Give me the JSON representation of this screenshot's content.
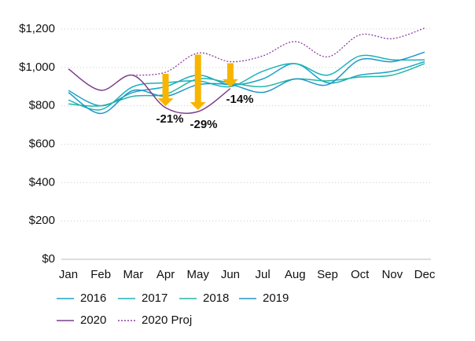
{
  "chart_data": {
    "type": "line",
    "categories": [
      "Jan",
      "Feb",
      "Mar",
      "Apr",
      "May",
      "Jun",
      "Jul",
      "Aug",
      "Sep",
      "Oct",
      "Nov",
      "Dec"
    ],
    "ylim": [
      0,
      1200
    ],
    "yticks": [
      {
        "value": 0,
        "label": "$0"
      },
      {
        "value": 200,
        "label": "$200"
      },
      {
        "value": 400,
        "label": "$400"
      },
      {
        "value": 600,
        "label": "$600"
      },
      {
        "value": 800,
        "label": "$800"
      },
      {
        "value": 1000,
        "label": "$1,000"
      },
      {
        "value": 1200,
        "label": "$1,200"
      }
    ],
    "grid": true,
    "series": [
      {
        "name": "2016",
        "color": "#1aa6c4",
        "values": [
          880,
          800,
          870,
          900,
          960,
          910,
          940,
          1020,
          920,
          960,
          980,
          1030
        ]
      },
      {
        "name": "2017",
        "color": "#1bb3b8",
        "values": [
          830,
          780,
          900,
          920,
          930,
          900,
          980,
          1020,
          960,
          1060,
          1040,
          1040
        ]
      },
      {
        "name": "2018",
        "color": "#25b5a5",
        "values": [
          810,
          800,
          850,
          860,
          940,
          920,
          900,
          940,
          930,
          950,
          960,
          1020
        ]
      },
      {
        "name": "2019",
        "color": "#2196c9",
        "values": [
          870,
          760,
          880,
          850,
          910,
          910,
          870,
          940,
          910,
          1040,
          1030,
          1080
        ]
      },
      {
        "name": "2020",
        "color": "#7b3f8c",
        "values": [
          992,
          881,
          959,
          790,
          770,
          890,
          null,
          null,
          null,
          null,
          null,
          null
        ]
      },
      {
        "name": "2020 Proj",
        "color": "#8a3fa0",
        "dashed": true,
        "values": [
          null,
          null,
          959,
          975,
          1075,
          1030,
          1060,
          1135,
          1055,
          1170,
          1150,
          1205
        ]
      }
    ],
    "annotations": [
      "-21%",
      "-29%",
      "-14%"
    ],
    "annotation_color": "#f7b500"
  }
}
